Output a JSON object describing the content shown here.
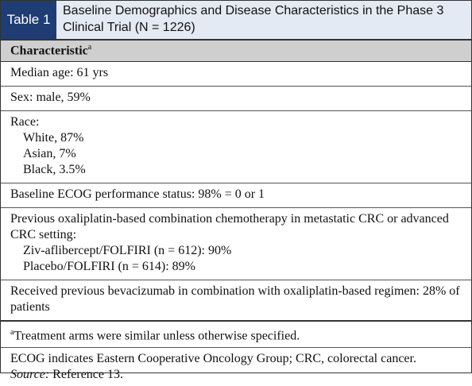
{
  "header": {
    "label": "Table 1",
    "title": "Baseline Demographics and Disease Characteristics in the Phase 3 Clinical Trial (N = 1226)"
  },
  "table": {
    "column_header": "Characteristic",
    "column_header_note": "a",
    "rows": [
      {
        "text": "Median age: 61 yrs"
      },
      {
        "text": "Sex: male, 59%"
      },
      {
        "text": "Race:",
        "items": [
          "White, 87%",
          "Asian, 7%",
          "Black, 3.5%"
        ]
      },
      {
        "text": "Baseline ECOG performance status: 98% = 0 or 1"
      },
      {
        "text": "Previous oxaliplatin-based combination chemotherapy in metastatic CRC or advanced CRC setting:",
        "items": [
          "Ziv-aflibercept/FOLFIRI (n = 612): 90%",
          "Placebo/FOLFIRI (n = 614): 89%"
        ]
      },
      {
        "text": "Received previous bevacizumab in combination with oxaliplatin-based regimen: 28% of patients"
      }
    ]
  },
  "footnotes": {
    "note_mark": "a",
    "note": "Treatment arms were similar unless otherwise specified.",
    "abbreviations": "ECOG indicates Eastern Cooperative Oncology Group; CRC, colorectal cancer.",
    "source_label": "Source:",
    "source": "Reference 13."
  }
}
